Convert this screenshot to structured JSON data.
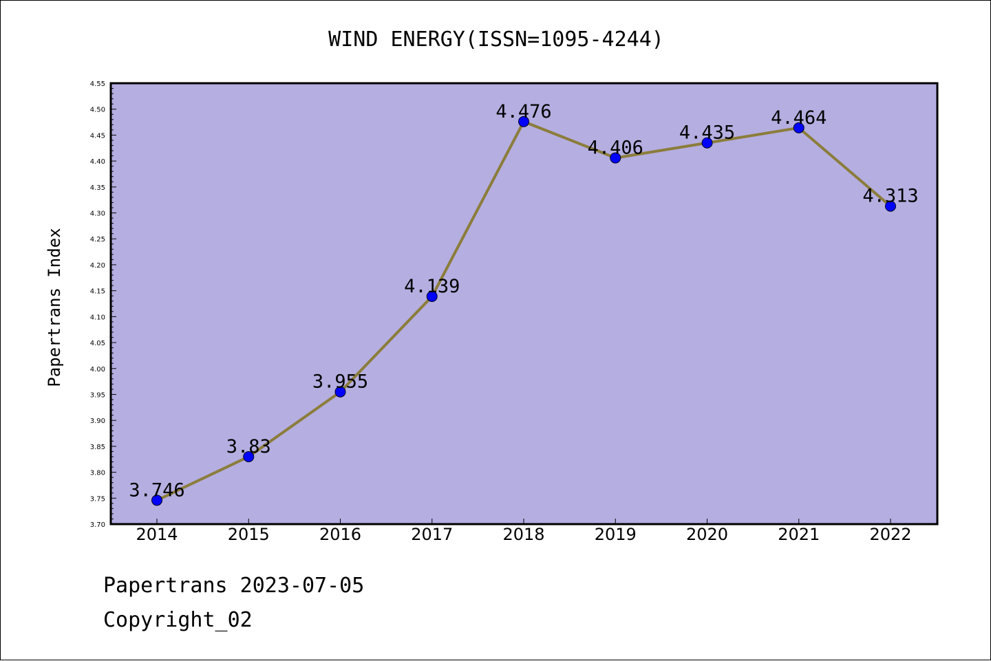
{
  "footer": {
    "line1": "Papertrans 2023-07-05",
    "line2": "Copyright_02"
  },
  "chart_data": {
    "type": "line",
    "title": "WIND ENERGY(ISSN=1095-4244)",
    "xlabel": "",
    "ylabel": "Papertrans Index",
    "categories": [
      "2014",
      "2015",
      "2016",
      "2017",
      "2018",
      "2019",
      "2020",
      "2021",
      "2022"
    ],
    "values": [
      3.746,
      3.83,
      3.955,
      4.139,
      4.476,
      4.406,
      4.435,
      4.464,
      4.313
    ],
    "value_labels": [
      "3.746",
      "3.83",
      "3.955",
      "4.139",
      "4.476",
      "4.406",
      "4.435",
      "4.464",
      "4.313"
    ],
    "ylim": [
      3.7,
      4.55
    ],
    "yticks": [
      "3.70",
      "3.75",
      "3.80",
      "3.85",
      "3.90",
      "3.95",
      "4.00",
      "4.05",
      "4.10",
      "4.15",
      "4.20",
      "4.25",
      "4.30",
      "4.35",
      "4.40",
      "4.45",
      "4.50",
      "4.55"
    ],
    "grid": false,
    "colors": {
      "plot_background": "#b5aee1",
      "line": "#8b7d3a",
      "marker": "#0000ff"
    }
  }
}
